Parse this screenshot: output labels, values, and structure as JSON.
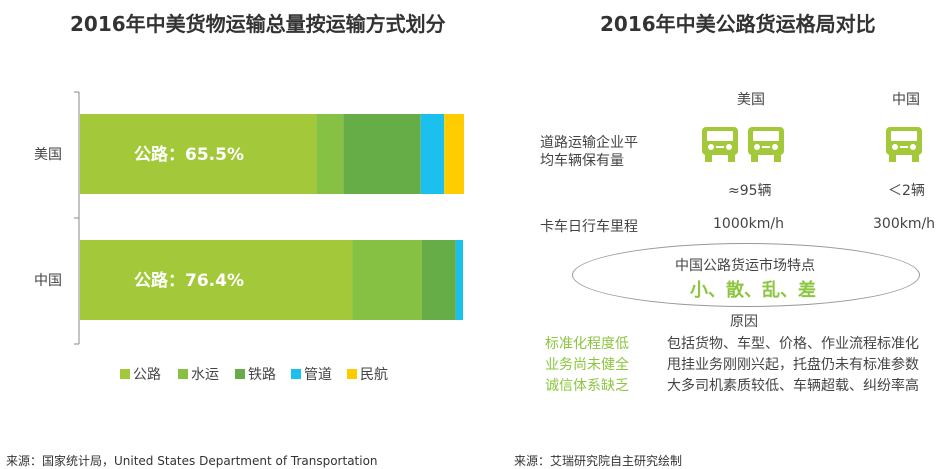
{
  "left": {
    "title": "2016年中美货物运输总量按运输方式划分",
    "chart_data": {
      "type": "bar",
      "orientation": "horizontal",
      "stacked": true,
      "categories": [
        "美国",
        "中国"
      ],
      "series": [
        {
          "name": "公路",
          "color": "#a3c93a",
          "values": [
            65.5,
            76.4
          ]
        },
        {
          "name": "水运",
          "color": "#86c144",
          "values": [
            7.5,
            19.5
          ]
        },
        {
          "name": "铁路",
          "color": "#66ad47",
          "values": [
            21.5,
            9.5
          ]
        },
        {
          "name": "管道",
          "color": "#1bc0ee",
          "values": [
            6.5,
            2.0
          ]
        },
        {
          "name": "民航",
          "color": "#ffcc00",
          "values": [
            5.5,
            0
          ]
        }
      ],
      "bar_labels": [
        "公路：65.5%",
        "公路：76.4%"
      ],
      "legend_position": "bottom"
    }
  },
  "right": {
    "title": "2016年中美公路货运格局对比",
    "col_us": "美国",
    "col_cn": "中国",
    "row1_label": [
      "道路运输企业平",
      "均车辆保有量"
    ],
    "us_trucks_value": "≈95辆",
    "cn_trucks_value": "＜2辆",
    "row2_label": "卡车日行车里程",
    "us_mileage": "1000km/h",
    "cn_mileage": "300km/h",
    "ellipse_title": "中国公路货运市场特点",
    "ellipse_keywords": "小、散、乱、差",
    "reason_title": "原因",
    "reasons": [
      {
        "key": "标准化程度低",
        "text": "包括货物、车型、价格、作业流程标准化"
      },
      {
        "key": "业务尚未健全",
        "text": "甩挂业务刚刚兴起，托盘仍未有标准参数"
      },
      {
        "key": "诚信体系缺乏",
        "text": "大多司机素质较低、车辆超载、纠纷率高"
      }
    ],
    "icons": {
      "truck": "truck-icon"
    },
    "truck_color": "#a3c93a"
  },
  "footer": {
    "left_source": "来源：国家统计局，United States Department of Transportation",
    "right_source": "来源：艾瑞研究院自主研究绘制"
  }
}
